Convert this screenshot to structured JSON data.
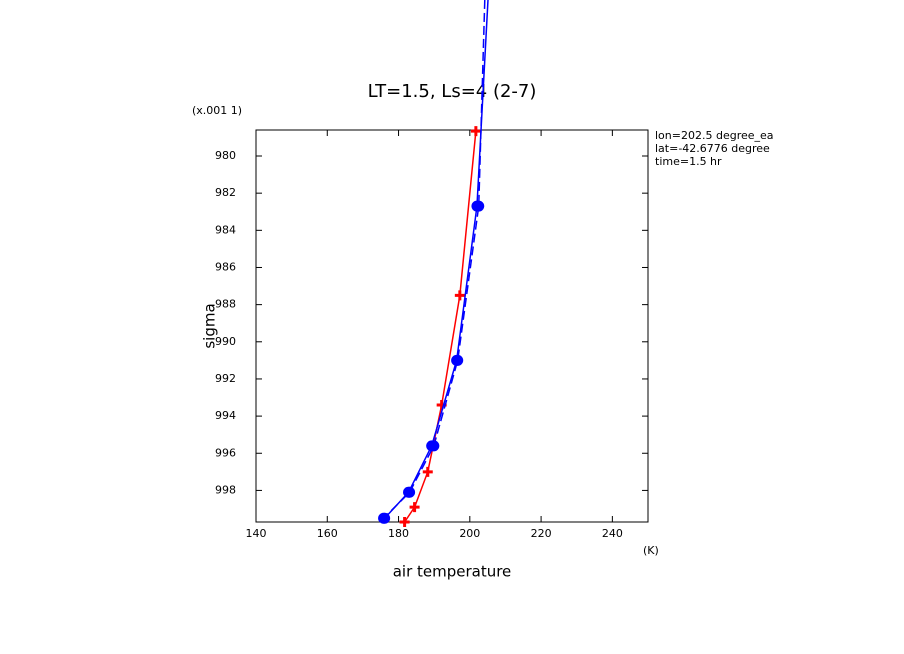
{
  "chart_data": {
    "type": "line",
    "title": "LT=1.5, Ls=4 (2-7)",
    "x_label": "air temperature",
    "y_label": "sigma",
    "x_unit": "(K)",
    "y_unit": "(x.001 1)",
    "annotations": [
      "lon=202.5 degree_ea",
      "lat=-42.6776 degree",
      "time=1.5 hr"
    ],
    "xlim": [
      140,
      250
    ],
    "xticks": [
      140,
      160,
      180,
      200,
      220,
      240
    ],
    "ylim": [
      978.6,
      999.7
    ],
    "yticks": [
      980,
      982,
      984,
      986,
      988,
      990,
      992,
      994,
      996,
      998
    ],
    "y_inverted": true,
    "series": [
      {
        "color": "#ff0000",
        "marker": "plus",
        "dashed": false,
        "x": [
          201.7,
          197.2,
          192.1,
          188.2,
          184.5,
          181.7
        ],
        "values": [
          978.66,
          987.5,
          993.4,
          997.0,
          998.9,
          999.7
        ]
      },
      {
        "color": "#0000ff",
        "marker": "dot",
        "dashed": false,
        "x": [
          205.1,
          202.0,
          196.3,
          189.3,
          182.8,
          176.1
        ],
        "values": [
          971.6,
          982.7,
          991.0,
          995.6,
          998.1,
          999.5
        ]
      },
      {
        "color": "#0000ff",
        "marker": "dot",
        "dashed": true,
        "x": [
          204.2,
          202.5,
          196.6,
          189.9,
          183.1,
          175.8
        ],
        "values": [
          971.6,
          982.7,
          991.0,
          995.6,
          998.1,
          999.5
        ]
      }
    ]
  }
}
